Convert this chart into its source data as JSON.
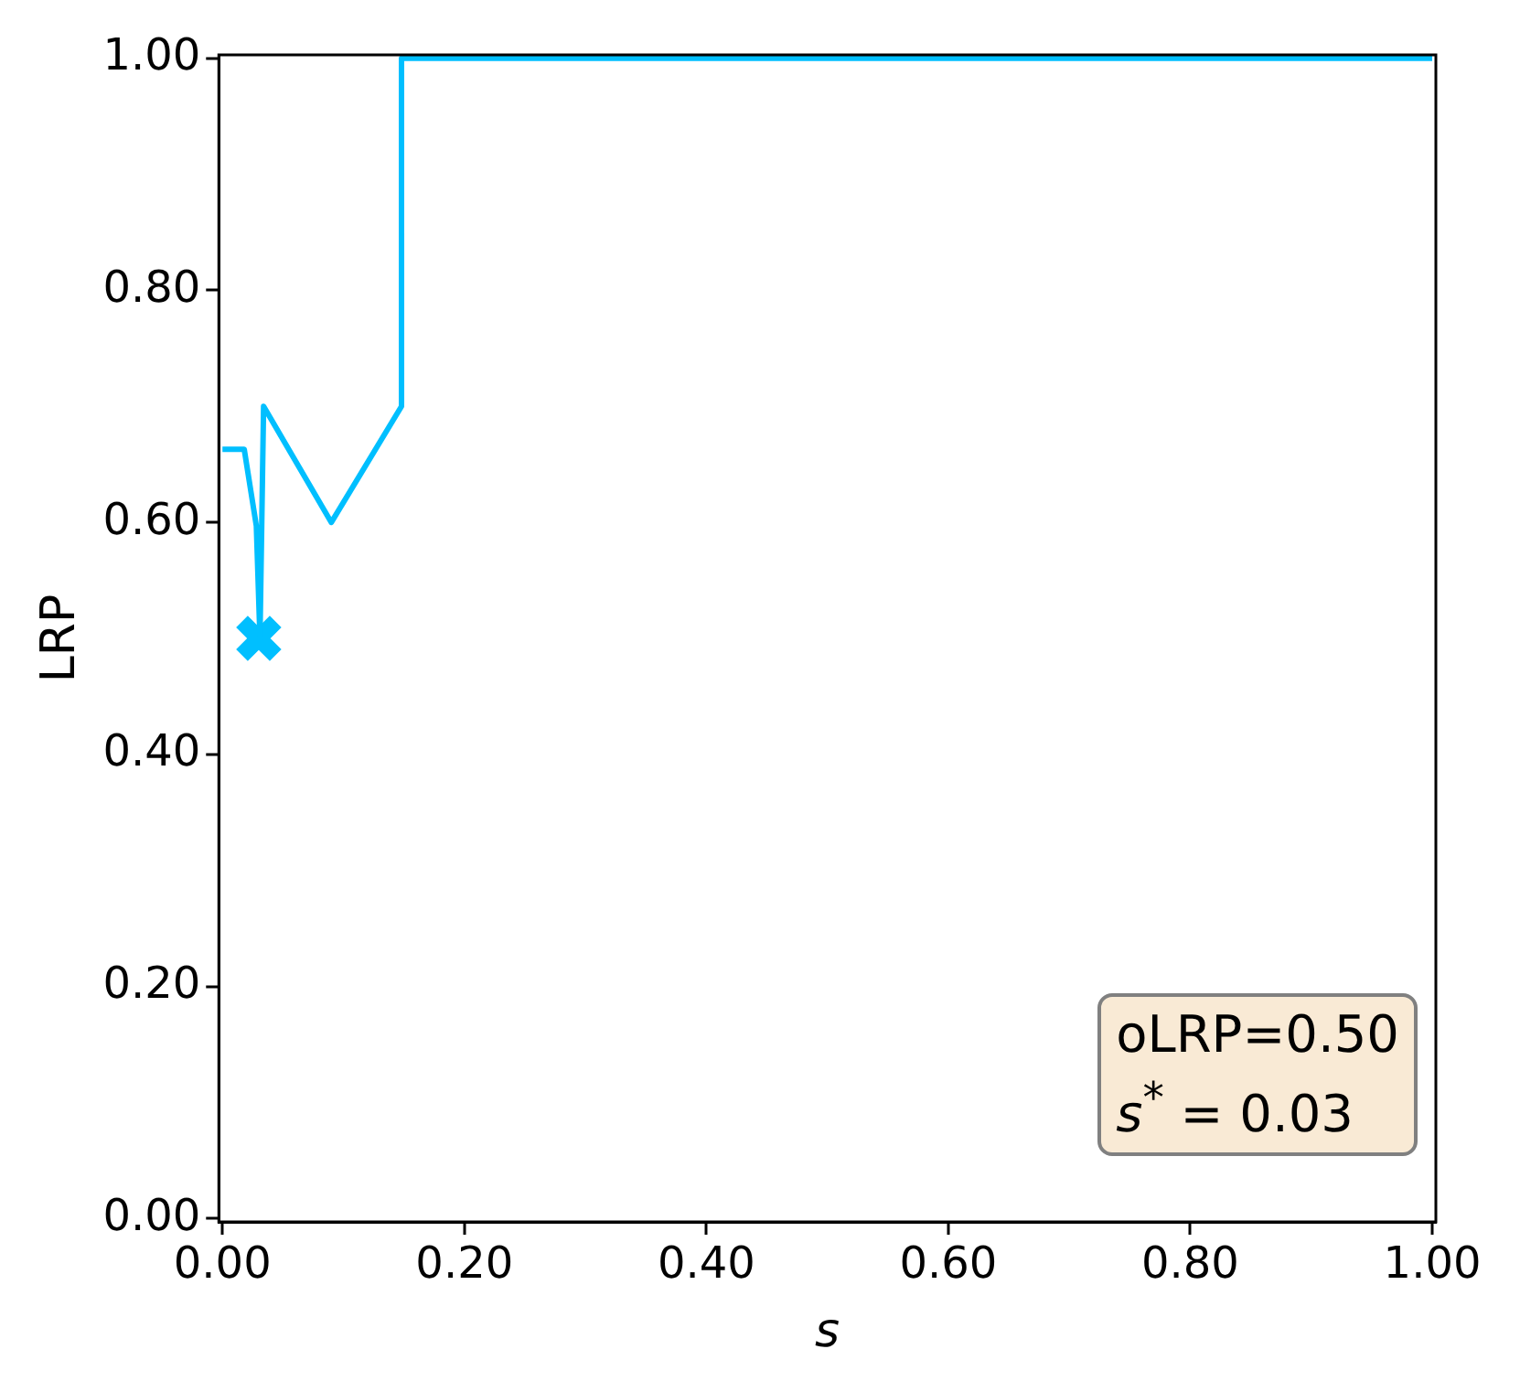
{
  "chart_data": {
    "type": "line",
    "xlabel": "s",
    "ylabel": "LRP",
    "xlim": [
      -0.003,
      1.003
    ],
    "ylim": [
      -0.003,
      1.003
    ],
    "xticks": [
      {
        "value": 0,
        "label": "0.00"
      },
      {
        "value": 0.2,
        "label": "0.20"
      },
      {
        "value": 0.4,
        "label": "0.40"
      },
      {
        "value": 0.6,
        "label": "0.60"
      },
      {
        "value": 0.8,
        "label": "0.80"
      },
      {
        "value": 1,
        "label": "1.00"
      }
    ],
    "yticks": [
      {
        "value": 0,
        "label": "0.00"
      },
      {
        "value": 0.2,
        "label": "0.20"
      },
      {
        "value": 0.4,
        "label": "0.40"
      },
      {
        "value": 0.6,
        "label": "0.60"
      },
      {
        "value": 0.8,
        "label": "0.80"
      },
      {
        "value": 1,
        "label": "1.00"
      }
    ],
    "series": [
      {
        "type": "line",
        "color": "#00bfff",
        "x": [
          0,
          0.018,
          0.028,
          0.031,
          0.034,
          0.09,
          0.148,
          0.148,
          1
        ],
        "values": [
          0.663,
          0.663,
          0.597,
          0.5,
          0.7,
          0.6,
          0.7,
          1,
          1
        ]
      },
      {
        "type": "scatter",
        "marker": "cross",
        "color": "#00bfff",
        "x": [
          0.03
        ],
        "values": [
          0.5
        ]
      }
    ],
    "annotations": [
      "oLRP=0.50",
      "s$^{*}$ = 0.03"
    ],
    "grid": false,
    "legend": false
  }
}
